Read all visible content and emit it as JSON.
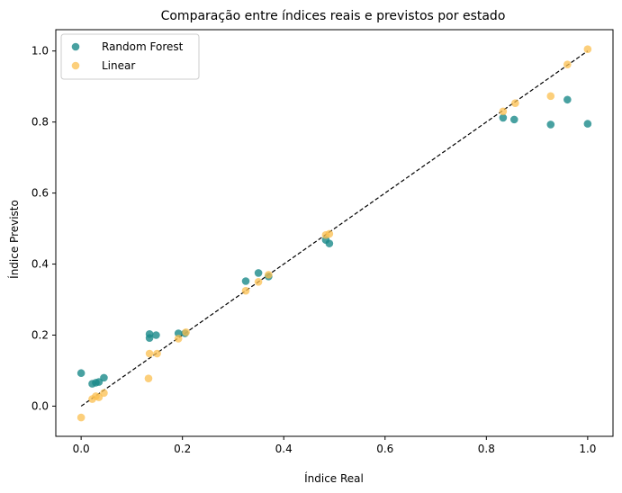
{
  "chart_data": {
    "type": "scatter",
    "title": "Comparação entre índices reais e previstos por estado",
    "xlabel": "Índice Real",
    "ylabel": "Índice Previsto",
    "xlim": [
      -0.05,
      1.05
    ],
    "ylim": [
      -0.085,
      1.06
    ],
    "xticks": [
      0.0,
      0.2,
      0.4,
      0.6,
      0.8,
      1.0
    ],
    "yticks": [
      0.0,
      0.2,
      0.4,
      0.6,
      0.8,
      1.0
    ],
    "xtick_labels": [
      "0.0",
      "0.2",
      "0.4",
      "0.6",
      "0.8",
      "1.0"
    ],
    "ytick_labels": [
      "0.0",
      "0.2",
      "0.4",
      "0.6",
      "0.8",
      "1.0"
    ],
    "grid": false,
    "legend_position": "top-left",
    "reference_line": {
      "x": [
        0,
        1
      ],
      "y": [
        0,
        1
      ],
      "style": "dashed",
      "color": "#000000"
    },
    "series": [
      {
        "name": "Random Forest",
        "color": "#1a8a8a",
        "x": [
          0.0,
          0.022,
          0.029,
          0.035,
          0.045,
          0.135,
          0.135,
          0.148,
          0.192,
          0.205,
          0.325,
          0.35,
          0.37,
          0.483,
          0.49,
          0.833,
          0.855,
          0.927,
          0.96,
          1.0
        ],
        "y": [
          0.093,
          0.063,
          0.066,
          0.068,
          0.08,
          0.192,
          0.203,
          0.2,
          0.205,
          0.205,
          0.352,
          0.375,
          0.365,
          0.468,
          0.458,
          0.812,
          0.807,
          0.793,
          0.863,
          0.795
        ]
      },
      {
        "name": "Linear",
        "color": "#fbbf4f",
        "x": [
          0.0,
          0.022,
          0.029,
          0.035,
          0.045,
          0.133,
          0.135,
          0.15,
          0.192,
          0.207,
          0.325,
          0.35,
          0.37,
          0.483,
          0.49,
          0.833,
          0.857,
          0.927,
          0.96,
          1.0
        ],
        "y": [
          -0.032,
          0.02,
          0.028,
          0.025,
          0.037,
          0.078,
          0.148,
          0.148,
          0.19,
          0.208,
          0.325,
          0.35,
          0.37,
          0.482,
          0.485,
          0.83,
          0.853,
          0.873,
          0.962,
          1.005
        ]
      }
    ]
  }
}
